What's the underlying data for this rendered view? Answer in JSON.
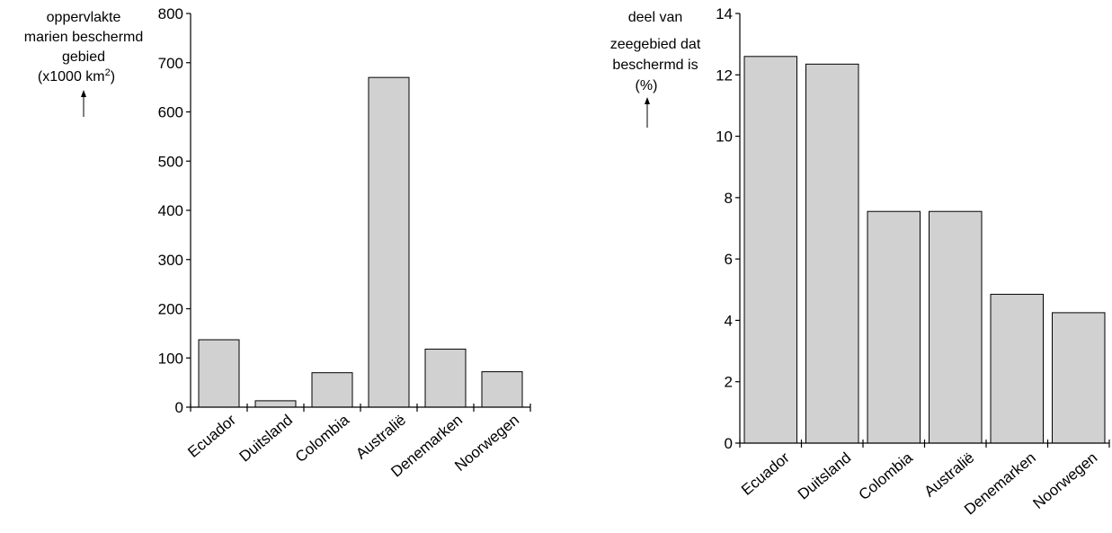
{
  "chart_data": [
    {
      "type": "bar",
      "categories": [
        "Ecuador",
        "Duitsland",
        "Colombia",
        "Australië",
        "Denemarken",
        "Noorwegen"
      ],
      "values": [
        137,
        13,
        70,
        670,
        118,
        72
      ],
      "ylabel_lines": [
        "oppervlakte",
        "marien beschermd",
        "gebied",
        "(x1000 km",
        "2",
        ")"
      ],
      "ylim": [
        0,
        800
      ],
      "yticks": [
        0,
        100,
        200,
        300,
        400,
        500,
        600,
        700,
        800
      ],
      "grid": false,
      "bar_color": "#d1d1d1"
    },
    {
      "type": "bar",
      "categories": [
        "Ecuador",
        "Duitsland",
        "Colombia",
        "Australië",
        "Denemarken",
        "Noorwegen"
      ],
      "values": [
        12.6,
        12.35,
        7.55,
        7.55,
        4.85,
        4.25
      ],
      "ylabel_lines": [
        "deel van",
        "zeegebied dat",
        "beschermd is",
        "(%)"
      ],
      "ylim": [
        0,
        14
      ],
      "yticks": [
        0,
        2,
        4,
        6,
        8,
        10,
        12,
        14
      ],
      "grid": false,
      "bar_color": "#d1d1d1"
    }
  ]
}
